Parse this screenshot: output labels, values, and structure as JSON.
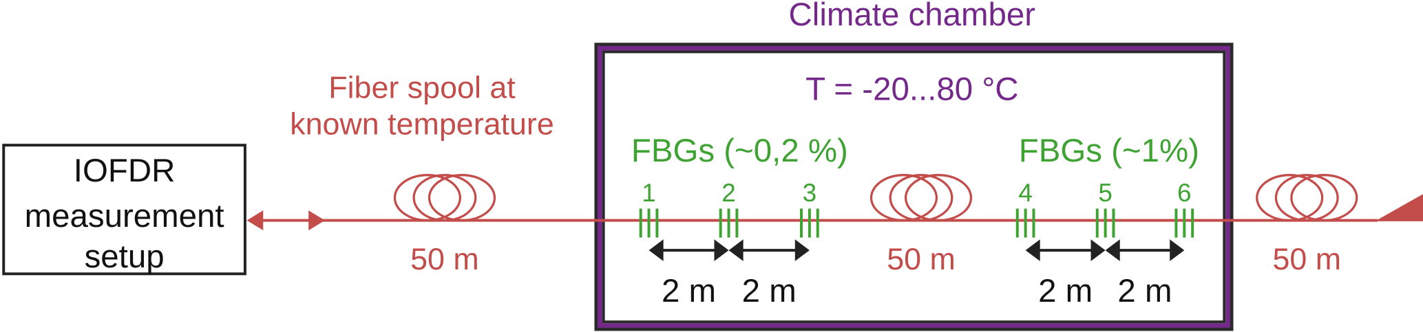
{
  "colors": {
    "fiber": "#c34d4a",
    "chamber": "#74298a",
    "fbg": "#3ea332",
    "text": "#111111"
  },
  "device": {
    "lines": [
      "IOFDR",
      "measurement",
      "setup"
    ]
  },
  "reference_spool": {
    "lines": [
      "Fiber spool at",
      "known temperature"
    ],
    "length": "50 m"
  },
  "chamber": {
    "title": "Climate chamber",
    "temperature": "T = -20...80 °C"
  },
  "fbg_groups": [
    {
      "label": "FBGs (~0,2 %)",
      "ids": [
        "1",
        "2",
        "3"
      ],
      "spacings": [
        "2 m",
        "2 m"
      ]
    },
    {
      "label": "FBGs (~1%)",
      "ids": [
        "4",
        "5",
        "6"
      ],
      "spacings": [
        "2 m",
        "2 m"
      ]
    }
  ],
  "middle_spool": {
    "length": "50 m"
  },
  "end_spool": {
    "length": "50 m"
  }
}
